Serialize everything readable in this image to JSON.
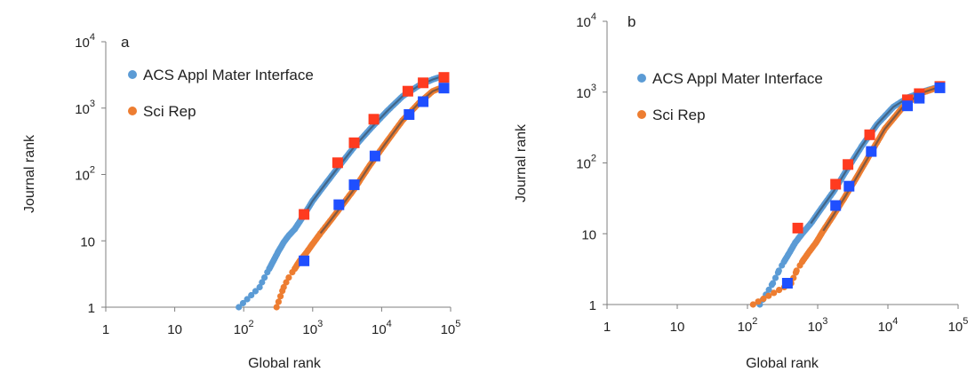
{
  "figure_title": "",
  "chart_data": [
    {
      "type": "scatter",
      "panel": "a",
      "xlabel": "Global rank",
      "ylabel": "Journal rank",
      "x_scale": "log",
      "y_scale": "log",
      "xlim": [
        1,
        100000
      ],
      "ylim": [
        1,
        10000
      ],
      "x_ticks": [
        {
          "value": 1,
          "base": "1",
          "exp": ""
        },
        {
          "value": 10,
          "base": "10",
          "exp": ""
        },
        {
          "value": 100,
          "base": "10",
          "exp": "2"
        },
        {
          "value": 1000,
          "base": "10",
          "exp": "3"
        },
        {
          "value": 10000,
          "base": "10",
          "exp": "4"
        },
        {
          "value": 100000,
          "base": "10",
          "exp": "5"
        }
      ],
      "y_ticks": [
        {
          "value": 1,
          "base": "1",
          "exp": ""
        },
        {
          "value": 10,
          "base": "10",
          "exp": ""
        },
        {
          "value": 100,
          "base": "10",
          "exp": "2"
        },
        {
          "value": 1000,
          "base": "10",
          "exp": "3"
        },
        {
          "value": 10000,
          "base": "10",
          "exp": "4"
        }
      ],
      "grid": false,
      "legend_position": "top-left",
      "legend": [
        {
          "label": "ACS Appl Mater Interface",
          "color": "#5b9bd5"
        },
        {
          "label": "Sci Rep",
          "color": "#ed7d31"
        }
      ],
      "series": [
        {
          "marker": "circle",
          "color": "#5b9bd5",
          "x": [
            85,
            170,
            200,
            235,
            270,
            320,
            380,
            450,
            550,
            700,
            1000,
            1500,
            2500,
            4000,
            7000,
            12000,
            20000,
            35000,
            55000,
            75000
          ],
          "y": [
            1,
            2,
            2.8,
            3.8,
            5,
            7,
            9.5,
            12,
            15,
            22,
            40,
            70,
            140,
            260,
            500,
            900,
            1500,
            2200,
            2700,
            3000
          ]
        },
        {
          "marker": "circle",
          "color": "#ed7d31",
          "x": [
            300,
            380,
            450,
            550,
            650,
            800,
            1000,
            1300,
            1800,
            2600,
            4000,
            6500,
            11000,
            20000,
            35000,
            55000,
            80000
          ],
          "y": [
            1,
            2,
            2.8,
            3.8,
            5,
            6.5,
            9,
            13,
            20,
            33,
            60,
            130,
            280,
            650,
            1200,
            1800,
            2100
          ]
        },
        {
          "marker": "square",
          "color": "#ff3b1f",
          "x": [
            750,
            2300,
            4000,
            7700,
            24000,
            40000,
            80000
          ],
          "y": [
            25,
            150,
            300,
            680,
            1800,
            2400,
            2900
          ]
        },
        {
          "marker": "square",
          "color": "#1f4fff",
          "x": [
            750,
            2400,
            4000,
            8000,
            25000,
            40000,
            80000
          ],
          "y": [
            5,
            35,
            70,
            190,
            800,
            1250,
            2000
          ]
        }
      ]
    },
    {
      "type": "scatter",
      "panel": "b",
      "xlabel": "Global rank",
      "ylabel": "Journal rank",
      "x_scale": "log",
      "y_scale": "log",
      "xlim": [
        1,
        100000
      ],
      "ylim": [
        1,
        10000
      ],
      "x_ticks": [
        {
          "value": 1,
          "base": "1",
          "exp": ""
        },
        {
          "value": 10,
          "base": "10",
          "exp": ""
        },
        {
          "value": 100,
          "base": "10",
          "exp": "2"
        },
        {
          "value": 1000,
          "base": "10",
          "exp": "3"
        },
        {
          "value": 10000,
          "base": "10",
          "exp": "4"
        },
        {
          "value": 100000,
          "base": "10",
          "exp": "5"
        }
      ],
      "y_ticks": [
        {
          "value": 1,
          "base": "1",
          "exp": ""
        },
        {
          "value": 10,
          "base": "10",
          "exp": ""
        },
        {
          "value": 100,
          "base": "10",
          "exp": "2"
        },
        {
          "value": 1000,
          "base": "10",
          "exp": "3"
        },
        {
          "value": 10000,
          "base": "10",
          "exp": "4"
        }
      ],
      "grid": false,
      "legend_position": "top-left",
      "legend": [
        {
          "label": "ACS Appl Mater Interface",
          "color": "#5b9bd5"
        },
        {
          "label": "Sci Rep",
          "color": "#ed7d31"
        }
      ],
      "series": [
        {
          "marker": "circle",
          "color": "#5b9bd5",
          "x": [
            150,
            230,
            280,
            330,
            400,
            480,
            600,
            800,
            1100,
            1700,
            2600,
            4200,
            7000,
            12000,
            20000,
            35000,
            55000
          ],
          "y": [
            1,
            2,
            3,
            4,
            5.5,
            7.5,
            10,
            14,
            22,
            40,
            80,
            170,
            350,
            620,
            850,
            1050,
            1200
          ]
        },
        {
          "marker": "circle",
          "color": "#ed7d31",
          "x": [
            120,
            420,
            500,
            600,
            750,
            950,
            1200,
            1600,
            2300,
            3500,
            5500,
            9000,
            16000,
            28000,
            50000
          ],
          "y": [
            1,
            2,
            3,
            4,
            5.5,
            7.5,
            11,
            17,
            30,
            60,
            130,
            300,
            600,
            950,
            1150
          ]
        },
        {
          "marker": "square",
          "color": "#ff3b1f",
          "x": [
            520,
            1800,
            2700,
            5500,
            19000,
            28000,
            55000
          ],
          "y": [
            12,
            50,
            95,
            250,
            780,
            950,
            1200
          ]
        },
        {
          "marker": "square",
          "color": "#1f4fff",
          "x": [
            370,
            1800,
            2800,
            5800,
            19000,
            28000,
            55000
          ],
          "y": [
            2,
            25,
            47,
            145,
            640,
            820,
            1150
          ]
        }
      ]
    }
  ]
}
